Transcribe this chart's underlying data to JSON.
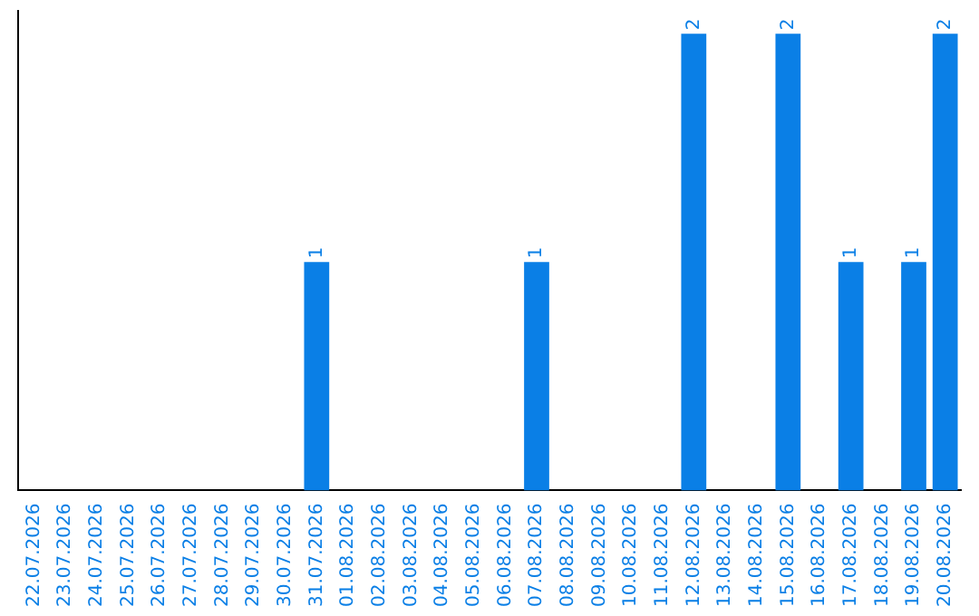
{
  "chart_data": {
    "type": "bar",
    "categories": [
      "22.07.2026",
      "23.07.2026",
      "24.07.2026",
      "25.07.2026",
      "26.07.2026",
      "27.07.2026",
      "28.07.2026",
      "29.07.2026",
      "30.07.2026",
      "31.07.2026",
      "01.08.2026",
      "02.08.2026",
      "03.08.2026",
      "04.08.2026",
      "05.08.2026",
      "06.08.2026",
      "07.08.2026",
      "08.08.2026",
      "09.08.2026",
      "10.08.2026",
      "11.08.2026",
      "12.08.2026",
      "13.08.2026",
      "14.08.2026",
      "15.08.2026",
      "16.08.2026",
      "17.08.2026",
      "18.08.2026",
      "19.08.2026",
      "20.08.2026"
    ],
    "values": [
      0,
      0,
      0,
      0,
      0,
      0,
      0,
      0,
      0,
      1,
      0,
      0,
      0,
      0,
      0,
      0,
      1,
      0,
      0,
      0,
      0,
      2,
      0,
      0,
      2,
      0,
      1,
      0,
      1,
      2
    ],
    "value_labels": [
      null,
      null,
      null,
      null,
      null,
      null,
      null,
      null,
      null,
      "1",
      null,
      null,
      null,
      null,
      null,
      null,
      "1",
      null,
      null,
      null,
      null,
      "2",
      null,
      null,
      "2",
      null,
      "1",
      null,
      "1",
      "2"
    ],
    "color": "#0a7fe6",
    "ylim": [
      0,
      2.1
    ],
    "grid": false,
    "legend": false,
    "tick_labels": "x"
  }
}
